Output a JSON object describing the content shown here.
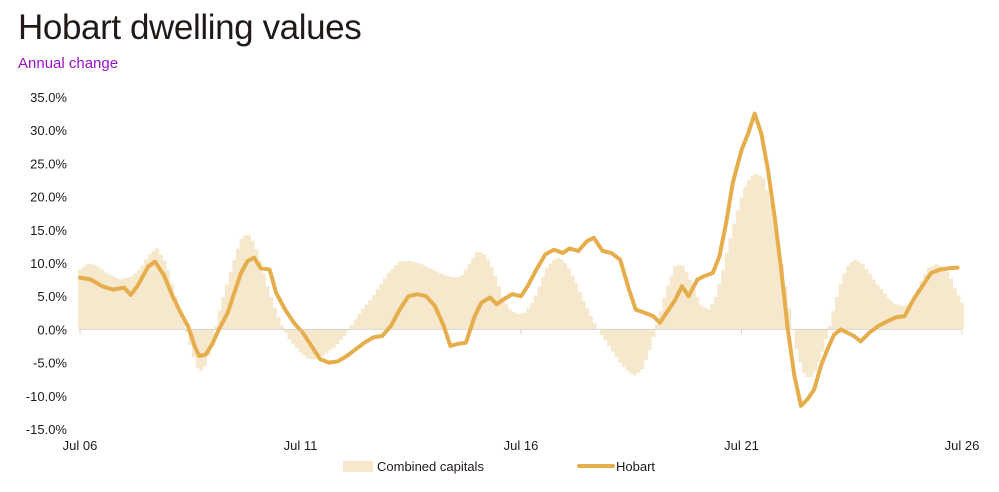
{
  "title": "Hobart dwelling values",
  "subtitle": "Annual change",
  "colors": {
    "bars": "#f6e8cc",
    "line": "#e6ad4c",
    "axis": "#d9d4cf",
    "text": "#1f1a17",
    "subtitle": "#9a12c7"
  },
  "chart_data": {
    "type": "bar",
    "title": "Hobart dwelling values",
    "subtitle": "Annual change",
    "xlabel": "",
    "ylabel": "",
    "ylim": [
      -15,
      35
    ],
    "yticks": [
      35,
      30,
      25,
      20,
      15,
      10,
      5,
      0,
      -5,
      -10,
      -15
    ],
    "ytick_labels": [
      "35.0%",
      "30.0%",
      "25.0%",
      "20.0%",
      "15.0%",
      "10.0%",
      "5.0%",
      "0.0%",
      "-5.0%",
      "-10.0%",
      "-15.0%"
    ],
    "xlim": [
      2006.5,
      2026.5
    ],
    "xticks": [
      2006.5,
      2011.5,
      2016.5,
      2021.5,
      2026.5
    ],
    "xtick_labels": [
      "Jul 06",
      "Jul 11",
      "Jul 16",
      "Jul 21",
      "Jul 26"
    ],
    "grid": false,
    "legend_position": "bottom-center",
    "series": [
      {
        "name": "Combined capitals",
        "type": "bar",
        "points": [
          [
            2006.5,
            9
          ],
          [
            2006.7,
            10
          ],
          [
            2006.9,
            9.5
          ],
          [
            2007.1,
            8.5
          ],
          [
            2007.4,
            7.5
          ],
          [
            2007.7,
            8
          ],
          [
            2007.9,
            9.5
          ],
          [
            2008.1,
            11.5
          ],
          [
            2008.25,
            12.2
          ],
          [
            2008.45,
            10
          ],
          [
            2008.6,
            6.5
          ],
          [
            2008.75,
            3
          ],
          [
            2008.9,
            0
          ],
          [
            2009.05,
            -3.5
          ],
          [
            2009.2,
            -6.5
          ],
          [
            2009.35,
            -5.5
          ],
          [
            2009.5,
            -2
          ],
          [
            2009.65,
            2.5
          ],
          [
            2009.8,
            6
          ],
          [
            2010.0,
            10.5
          ],
          [
            2010.15,
            13.5
          ],
          [
            2010.3,
            14.5
          ],
          [
            2010.45,
            13
          ],
          [
            2010.6,
            10
          ],
          [
            2010.75,
            6.5
          ],
          [
            2010.9,
            3.5
          ],
          [
            2011.05,
            1
          ],
          [
            2011.25,
            -1.5
          ],
          [
            2011.5,
            -3.5
          ],
          [
            2011.7,
            -4.5
          ],
          [
            2011.9,
            -4.5
          ],
          [
            2012.1,
            -3.5
          ],
          [
            2012.3,
            -2.5
          ],
          [
            2012.5,
            -1
          ],
          [
            2012.7,
            1
          ],
          [
            2012.9,
            3
          ],
          [
            2013.1,
            4.5
          ],
          [
            2013.3,
            6.5
          ],
          [
            2013.5,
            8.5
          ],
          [
            2013.75,
            10.2
          ],
          [
            2014.0,
            10.3
          ],
          [
            2014.25,
            9.8
          ],
          [
            2014.5,
            9
          ],
          [
            2014.75,
            8.2
          ],
          [
            2015.0,
            7.8
          ],
          [
            2015.15,
            8
          ],
          [
            2015.35,
            10
          ],
          [
            2015.5,
            11.7
          ],
          [
            2015.65,
            11.5
          ],
          [
            2015.8,
            10
          ],
          [
            2015.95,
            7.5
          ],
          [
            2016.1,
            4.5
          ],
          [
            2016.25,
            3
          ],
          [
            2016.4,
            2.3
          ],
          [
            2016.6,
            2.5
          ],
          [
            2016.8,
            4.5
          ],
          [
            2016.95,
            7
          ],
          [
            2017.1,
            9.5
          ],
          [
            2017.3,
            10.8
          ],
          [
            2017.45,
            10.5
          ],
          [
            2017.6,
            9
          ],
          [
            2017.75,
            7
          ],
          [
            2017.9,
            4.5
          ],
          [
            2018.05,
            2.5
          ],
          [
            2018.2,
            0.5
          ],
          [
            2018.35,
            -1
          ],
          [
            2018.55,
            -3
          ],
          [
            2018.75,
            -5
          ],
          [
            2018.95,
            -6.5
          ],
          [
            2019.1,
            -7
          ],
          [
            2019.25,
            -6
          ],
          [
            2019.4,
            -3.5
          ],
          [
            2019.55,
            0
          ],
          [
            2019.7,
            3.5
          ],
          [
            2019.85,
            7
          ],
          [
            2020.0,
            9.5
          ],
          [
            2020.15,
            9.8
          ],
          [
            2020.3,
            8
          ],
          [
            2020.45,
            5.5
          ],
          [
            2020.6,
            3.5
          ],
          [
            2020.75,
            3
          ],
          [
            2020.9,
            4.5
          ],
          [
            2021.05,
            8
          ],
          [
            2021.2,
            12.5
          ],
          [
            2021.4,
            17.5
          ],
          [
            2021.55,
            21
          ],
          [
            2021.7,
            23
          ],
          [
            2021.85,
            23.5
          ],
          [
            2022.0,
            22.8
          ],
          [
            2022.15,
            19.5
          ],
          [
            2022.3,
            14.5
          ],
          [
            2022.45,
            8.5
          ],
          [
            2022.6,
            2.5
          ],
          [
            2022.75,
            -3
          ],
          [
            2022.9,
            -6.5
          ],
          [
            2023.05,
            -7.5
          ],
          [
            2023.2,
            -6
          ],
          [
            2023.35,
            -3
          ],
          [
            2023.5,
            0.5
          ],
          [
            2023.65,
            4.5
          ],
          [
            2023.8,
            8
          ],
          [
            2023.95,
            10
          ],
          [
            2024.1,
            10.5
          ],
          [
            2024.25,
            9.8
          ],
          [
            2024.4,
            8.5
          ],
          [
            2024.55,
            7
          ],
          [
            2024.7,
            5.8
          ],
          [
            2024.85,
            4.5
          ],
          [
            2025.0,
            3.8
          ],
          [
            2025.15,
            3.5
          ],
          [
            2025.3,
            3.8
          ],
          [
            2025.45,
            5.5
          ],
          [
            2025.6,
            7.5
          ],
          [
            2025.75,
            9.3
          ],
          [
            2025.9,
            9.8
          ],
          [
            2026.05,
            9.5
          ],
          [
            2026.2,
            8.5
          ],
          [
            2026.35,
            6
          ],
          [
            2026.5,
            4
          ]
        ]
      },
      {
        "name": "Hobart",
        "type": "line",
        "points": [
          [
            2006.5,
            7.8
          ],
          [
            2006.75,
            7.5
          ],
          [
            2007.0,
            6.5
          ],
          [
            2007.25,
            6
          ],
          [
            2007.5,
            6.3
          ],
          [
            2007.65,
            5.2
          ],
          [
            2007.8,
            6.5
          ],
          [
            2008.05,
            9.5
          ],
          [
            2008.2,
            10.2
          ],
          [
            2008.4,
            8.2
          ],
          [
            2008.6,
            5
          ],
          [
            2008.8,
            2.3
          ],
          [
            2008.95,
            0.5
          ],
          [
            2009.1,
            -2.5
          ],
          [
            2009.2,
            -4
          ],
          [
            2009.35,
            -3.8
          ],
          [
            2009.5,
            -2.2
          ],
          [
            2009.65,
            0
          ],
          [
            2009.85,
            2.5
          ],
          [
            2010.0,
            5.5
          ],
          [
            2010.15,
            8.5
          ],
          [
            2010.3,
            10.3
          ],
          [
            2010.45,
            10.8
          ],
          [
            2010.6,
            9.2
          ],
          [
            2010.8,
            9
          ],
          [
            2010.95,
            5.5
          ],
          [
            2011.15,
            3
          ],
          [
            2011.35,
            1
          ],
          [
            2011.55,
            -0.5
          ],
          [
            2011.75,
            -2.5
          ],
          [
            2011.95,
            -4.5
          ],
          [
            2012.15,
            -5
          ],
          [
            2012.35,
            -4.8
          ],
          [
            2012.55,
            -4
          ],
          [
            2012.75,
            -3
          ],
          [
            2012.95,
            -2
          ],
          [
            2013.15,
            -1.2
          ],
          [
            2013.35,
            -1
          ],
          [
            2013.55,
            0.5
          ],
          [
            2013.75,
            3
          ],
          [
            2013.95,
            5
          ],
          [
            2014.15,
            5.3
          ],
          [
            2014.35,
            5
          ],
          [
            2014.55,
            3.5
          ],
          [
            2014.75,
            0.5
          ],
          [
            2014.9,
            -2.5
          ],
          [
            2015.05,
            -2.2
          ],
          [
            2015.25,
            -2
          ],
          [
            2015.45,
            2
          ],
          [
            2015.6,
            4
          ],
          [
            2015.8,
            4.8
          ],
          [
            2015.95,
            3.8
          ],
          [
            2016.1,
            4.5
          ],
          [
            2016.3,
            5.3
          ],
          [
            2016.5,
            5
          ],
          [
            2016.65,
            6.5
          ],
          [
            2016.85,
            9
          ],
          [
            2017.05,
            11.3
          ],
          [
            2017.25,
            12
          ],
          [
            2017.45,
            11.5
          ],
          [
            2017.6,
            12.2
          ],
          [
            2017.8,
            11.8
          ],
          [
            2018.0,
            13.3
          ],
          [
            2018.15,
            13.8
          ],
          [
            2018.35,
            11.8
          ],
          [
            2018.55,
            11.5
          ],
          [
            2018.75,
            10.5
          ],
          [
            2018.95,
            6
          ],
          [
            2019.1,
            3
          ],
          [
            2019.3,
            2.5
          ],
          [
            2019.5,
            2
          ],
          [
            2019.65,
            1
          ],
          [
            2019.85,
            3
          ],
          [
            2020.0,
            4.5
          ],
          [
            2020.15,
            6.5
          ],
          [
            2020.3,
            5
          ],
          [
            2020.5,
            7.5
          ],
          [
            2020.65,
            8
          ],
          [
            2020.85,
            8.5
          ],
          [
            2021.0,
            11
          ],
          [
            2021.15,
            16
          ],
          [
            2021.3,
            22
          ],
          [
            2021.5,
            27
          ],
          [
            2021.65,
            29.5
          ],
          [
            2021.8,
            32.5
          ],
          [
            2021.95,
            29.5
          ],
          [
            2022.1,
            24
          ],
          [
            2022.25,
            17
          ],
          [
            2022.4,
            9
          ],
          [
            2022.55,
            0
          ],
          [
            2022.7,
            -7
          ],
          [
            2022.85,
            -11.5
          ],
          [
            2023.0,
            -10.5
          ],
          [
            2023.15,
            -9
          ],
          [
            2023.3,
            -5.5
          ],
          [
            2023.45,
            -3
          ],
          [
            2023.6,
            -0.8
          ],
          [
            2023.75,
            0
          ],
          [
            2023.9,
            -0.5
          ],
          [
            2024.05,
            -1
          ],
          [
            2024.2,
            -1.8
          ],
          [
            2024.4,
            -0.5
          ],
          [
            2024.6,
            0.5
          ],
          [
            2024.8,
            1.2
          ],
          [
            2025.0,
            1.8
          ],
          [
            2025.2,
            2
          ],
          [
            2025.4,
            4.5
          ],
          [
            2025.6,
            6.5
          ],
          [
            2025.8,
            8.5
          ],
          [
            2026.0,
            9
          ],
          [
            2026.2,
            9.2
          ],
          [
            2026.4,
            9.3
          ]
        ]
      }
    ]
  }
}
